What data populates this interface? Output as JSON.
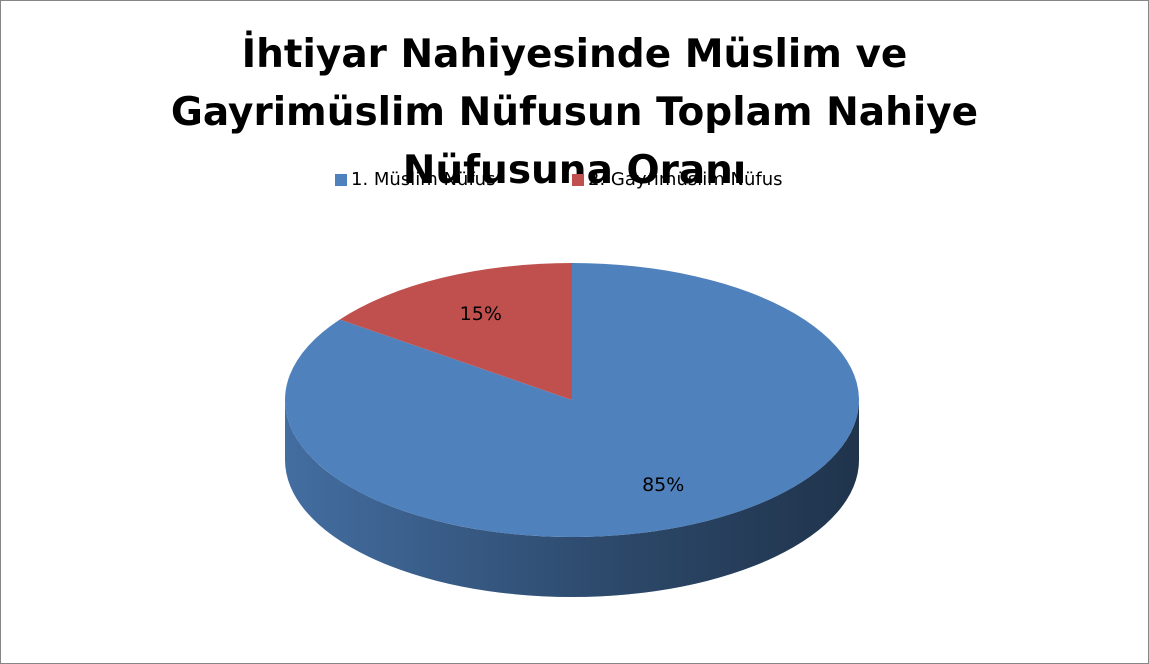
{
  "chart_data": {
    "type": "pie",
    "title": "İhtiyar Nahiyesinde Müslim ve Gayrimüslim Nüfusun Toplam Nahiye Nüfusuna Oranı",
    "categories": [
      "1. Müslim Nüfus",
      "2. Gayrimüslim Nüfus"
    ],
    "values": [
      85,
      15
    ],
    "value_labels": [
      "85%",
      "15%"
    ],
    "colors": [
      "#4f81bd",
      "#c0504d"
    ],
    "legend": "top"
  }
}
